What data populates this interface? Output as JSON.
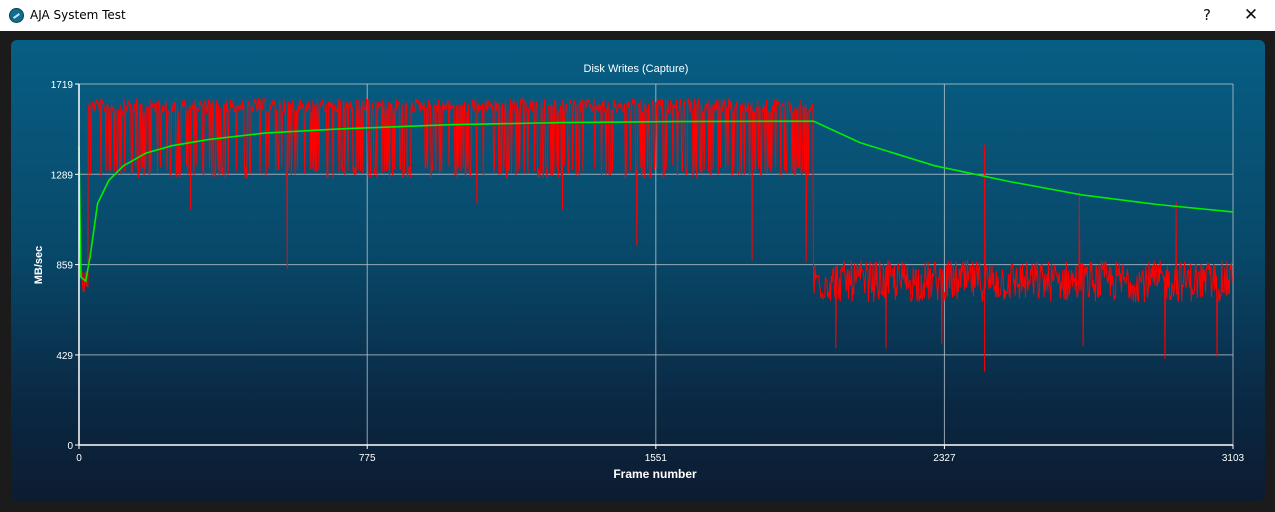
{
  "window": {
    "title": "AJA System Test",
    "help_label": "?",
    "close_label": "✕",
    "icon": "aja-logo-icon"
  },
  "colors": {
    "raw_series": "#ff0000",
    "avg_series": "#00ee00",
    "grid": "#b8c4cc",
    "axis_text": "#ffffff"
  },
  "chart_data": {
    "type": "line",
    "title": "Disk Writes (Capture)",
    "xlabel": "Frame number",
    "ylabel": "MB/sec",
    "xlim": [
      0,
      3103
    ],
    "ylim": [
      0,
      1719
    ],
    "xticks": [
      "0",
      "775",
      "1551",
      "2327",
      "3103"
    ],
    "yticks": [
      "0",
      "429",
      "859",
      "1289",
      "1719"
    ],
    "grid": true,
    "legend": "none",
    "series": [
      {
        "color": "#ff0000",
        "segments": [
          {
            "x_start": 0,
            "x_end": 25,
            "low": 700,
            "high": 850,
            "dips": []
          },
          {
            "x_start": 25,
            "x_end": 1975,
            "low": 1270,
            "high": 1650,
            "dips": [
              [
                560,
                840
              ],
              [
                300,
                1120
              ],
              [
                1500,
                950
              ],
              [
                1810,
                880
              ],
              [
                1955,
                870
              ],
              [
                1070,
                1150
              ],
              [
                1300,
                1120
              ]
            ]
          },
          {
            "x_start": 1975,
            "x_end": 3103,
            "low": 680,
            "high": 880,
            "dips": [
              [
                2035,
                460
              ],
              [
                2170,
                460
              ],
              [
                2320,
                480
              ],
              [
                2435,
                350
              ],
              [
                2700,
                470
              ],
              [
                2920,
                410
              ],
              [
                3060,
                420
              ]
            ],
            "spikes": [
              [
                2435,
                1430
              ],
              [
                2690,
                1210
              ],
              [
                2950,
                1160
              ]
            ]
          }
        ]
      },
      {
        "color": "#00ee00",
        "x": [
          0,
          5,
          18,
          30,
          50,
          80,
          120,
          180,
          250,
          350,
          500,
          700,
          1000,
          1300,
          1600,
          1975,
          2100,
          2300,
          2500,
          2700,
          2900,
          3103
        ],
        "y": [
          1420,
          800,
          780,
          900,
          1150,
          1260,
          1330,
          1390,
          1425,
          1455,
          1485,
          1505,
          1525,
          1535,
          1540,
          1542,
          1440,
          1330,
          1255,
          1190,
          1145,
          1110
        ]
      }
    ]
  }
}
